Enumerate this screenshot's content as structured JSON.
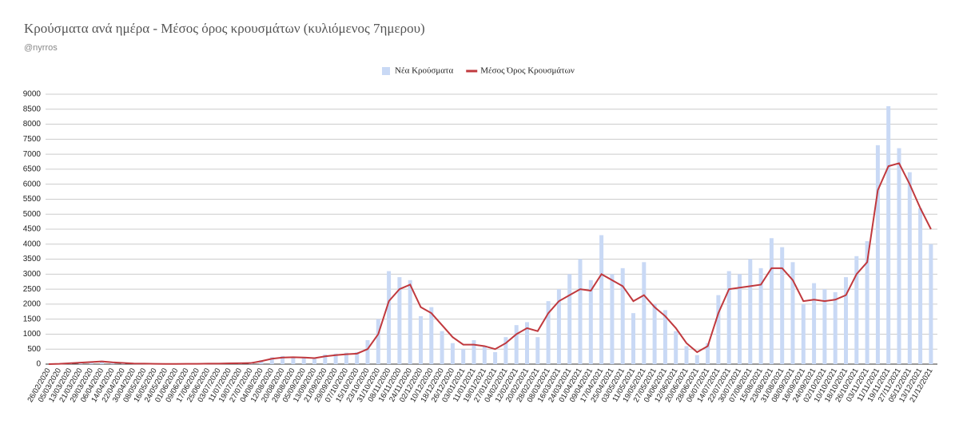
{
  "chart_data": {
    "type": "combo",
    "title": "Κρούσματα ανά ημέρα - Μέσος όρος κρουσμάτων (κυλιόμενος 7ημερου)",
    "subtitle": "@nyrros",
    "categories": [
      "26/02/2020",
      "05/03/2020",
      "13/03/2020",
      "21/03/2020",
      "29/03/2020",
      "06/04/2020",
      "14/04/2020",
      "22/04/2020",
      "30/04/2020",
      "08/05/2020",
      "16/05/2020",
      "24/05/2020",
      "01/06/2020",
      "09/06/2020",
      "17/06/2020",
      "25/06/2020",
      "03/07/2020",
      "11/07/2020",
      "19/07/2020",
      "27/07/2020",
      "04/08/2020",
      "12/08/2020",
      "20/08/2020",
      "28/08/2020",
      "05/09/2020",
      "13/09/2020",
      "21/09/2020",
      "29/09/2020",
      "07/10/2020",
      "15/10/2020",
      "23/10/2020",
      "31/10/2020",
      "08/11/2020",
      "16/11/2020",
      "24/11/2020",
      "02/12/2020",
      "10/12/2020",
      "18/12/2020",
      "26/12/2020",
      "03/01/2021",
      "11/01/2021",
      "19/01/2021",
      "27/01/2021",
      "04/02/2021",
      "12/02/2021",
      "20/02/2021",
      "28/02/2021",
      "08/03/2021",
      "16/03/2021",
      "24/03/2021",
      "01/04/2021",
      "09/04/2021",
      "17/04/2021",
      "25/04/2021",
      "03/05/2021",
      "11/05/2021",
      "19/05/2021",
      "27/05/2021",
      "04/06/2021",
      "12/06/2021",
      "20/06/2021",
      "28/06/2021",
      "06/07/2021",
      "14/07/2021",
      "22/07/2021",
      "30/07/2021",
      "07/08/2021",
      "15/08/2021",
      "23/08/2021",
      "31/08/2021",
      "08/09/2021",
      "16/09/2021",
      "24/09/2021",
      "02/10/2021",
      "10/10/2021",
      "18/10/2021",
      "26/10/2021",
      "03/11/2021",
      "11/11/2021",
      "19/11/2021",
      "27/11/2021",
      "05/12/2021",
      "13/12/2021",
      "21/12/2021"
    ],
    "series": [
      {
        "name": "Νέα Κρούσματα",
        "type": "bar",
        "color": "#c9d9f5",
        "values": [
          0,
          15,
          40,
          70,
          90,
          110,
          70,
          50,
          30,
          20,
          10,
          5,
          5,
          15,
          15,
          20,
          20,
          30,
          40,
          45,
          130,
          230,
          270,
          250,
          240,
          220,
          320,
          350,
          380,
          400,
          800,
          1500,
          3100,
          2900,
          2800,
          1600,
          1900,
          1100,
          700,
          500,
          800,
          600,
          400,
          900,
          1300,
          1400,
          900,
          2100,
          2500,
          3000,
          3500,
          2800,
          4300,
          3000,
          3200,
          1700,
          3400,
          2000,
          1800,
          1100,
          600,
          300,
          700,
          2300,
          3100,
          3000,
          3500,
          3200,
          4200,
          3900,
          3400,
          2000,
          2700,
          2500,
          2400,
          2900,
          3600,
          4100,
          7300,
          8600,
          7200,
          6400,
          5200,
          4000
        ]
      },
      {
        "name": "Μέσος Όρος Κρουσμάτων",
        "type": "line",
        "color": "#c0393e",
        "values": [
          0,
          10,
          30,
          50,
          70,
          90,
          60,
          40,
          20,
          15,
          10,
          5,
          5,
          10,
          10,
          15,
          15,
          25,
          30,
          35,
          100,
          180,
          220,
          230,
          220,
          200,
          260,
          300,
          330,
          350,
          500,
          1000,
          2100,
          2500,
          2650,
          1900,
          1700,
          1300,
          900,
          650,
          650,
          600,
          500,
          700,
          1000,
          1200,
          1100,
          1700,
          2100,
          2300,
          2500,
          2450,
          3000,
          2800,
          2600,
          2100,
          2300,
          1900,
          1600,
          1200,
          700,
          400,
          600,
          1700,
          2500,
          2550,
          2600,
          2650,
          3200,
          3200,
          2800,
          2100,
          2150,
          2100,
          2150,
          2300,
          3000,
          3400,
          5800,
          6600,
          6700,
          6000,
          5200,
          4500
        ]
      }
    ],
    "ylim": [
      0,
      9000
    ],
    "yticks": [
      0,
      500,
      1000,
      1500,
      2000,
      2500,
      3000,
      3500,
      4000,
      4500,
      5000,
      5500,
      6000,
      6500,
      7000,
      7500,
      8000,
      8500,
      9000
    ],
    "grid": true,
    "legend": "top"
  }
}
